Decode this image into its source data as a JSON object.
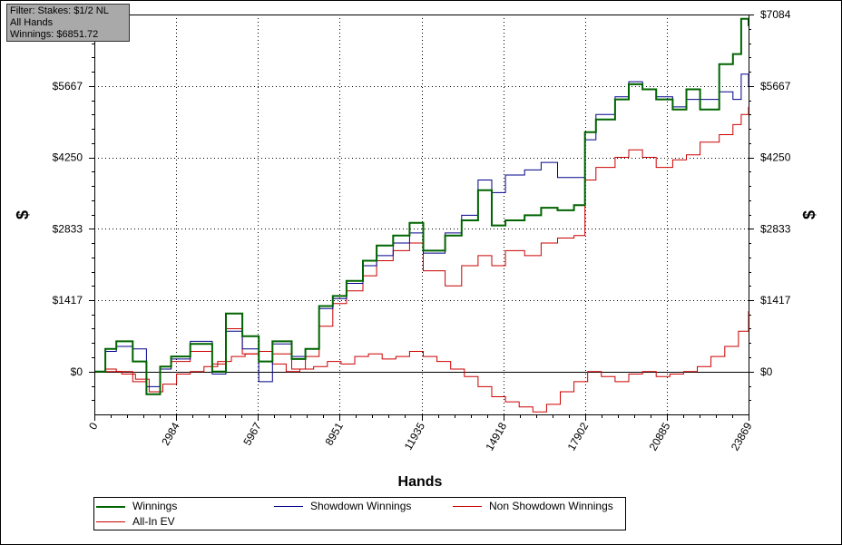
{
  "filter_box": {
    "line1": "Filter: Stakes: $1/2 NL",
    "line2": "All Hands",
    "line3": "Winnings: $6851.72"
  },
  "chart_data": {
    "type": "line",
    "title": "",
    "xlabel": "Hands",
    "ylabel_left": "$",
    "ylabel_right": "$",
    "xlim": [
      0,
      23869
    ],
    "ylim": [
      -850,
      7084
    ],
    "x_ticks": [
      0,
      2984,
      5967,
      8951,
      11935,
      14918,
      17902,
      20885,
      23869
    ],
    "y_ticks": [
      {
        "value": 0,
        "label": "$0"
      },
      {
        "value": 1417,
        "label": "$1417"
      },
      {
        "value": 2833,
        "label": "$2833"
      },
      {
        "value": 4250,
        "label": "$4250"
      },
      {
        "value": 5667,
        "label": "$5667"
      },
      {
        "value": 7084,
        "label": "$7084"
      }
    ],
    "grid": true,
    "legend_position": "bottom",
    "series": [
      {
        "name": "Winnings",
        "color": "#006400",
        "x": [
          0,
          400,
          800,
          1400,
          1900,
          2400,
          2800,
          3500,
          4300,
          4800,
          5400,
          6000,
          6500,
          7200,
          7700,
          8200,
          8700,
          9200,
          9800,
          10300,
          10900,
          11500,
          12000,
          12800,
          13400,
          14000,
          14500,
          15000,
          15700,
          16300,
          16900,
          17500,
          17900,
          18300,
          19000,
          19500,
          20000,
          20500,
          21100,
          21600,
          22100,
          22800,
          23300,
          23600,
          23869
        ],
        "y": [
          0,
          450,
          600,
          200,
          -450,
          100,
          300,
          550,
          0,
          1150,
          700,
          200,
          600,
          250,
          450,
          1300,
          1500,
          1800,
          2200,
          2500,
          2700,
          2950,
          2400,
          2700,
          3000,
          3600,
          2900,
          3000,
          3100,
          3250,
          3200,
          3300,
          4750,
          5000,
          5400,
          5700,
          5600,
          5400,
          5200,
          5600,
          5200,
          6100,
          6300,
          7000,
          6852
        ]
      },
      {
        "name": "Showdown Winnings",
        "color": "#00008b",
        "x": [
          0,
          400,
          800,
          1400,
          1900,
          2400,
          2800,
          3500,
          4300,
          4800,
          5400,
          6000,
          6500,
          7200,
          7700,
          8200,
          8700,
          9200,
          9800,
          10300,
          10900,
          11500,
          12000,
          12800,
          13400,
          14000,
          14500,
          15000,
          15700,
          16300,
          16900,
          17500,
          17900,
          18300,
          19000,
          19500,
          20000,
          20500,
          21100,
          21600,
          22100,
          22800,
          23300,
          23600,
          23869
        ],
        "y": [
          0,
          400,
          500,
          450,
          -300,
          50,
          250,
          600,
          -50,
          800,
          450,
          -200,
          550,
          300,
          450,
          1250,
          1450,
          1750,
          2100,
          2300,
          2550,
          2750,
          2350,
          2750,
          3100,
          3800,
          3550,
          3900,
          4000,
          4150,
          3850,
          3850,
          4600,
          5100,
          5450,
          5750,
          5600,
          5450,
          5250,
          5400,
          5400,
          5550,
          5400,
          5900,
          5650
        ]
      },
      {
        "name": "Non Showdown Winnings",
        "color": "#cc0000",
        "x": [
          0,
          500,
          1000,
          1500,
          2000,
          2500,
          3000,
          3500,
          4000,
          4500,
          5000,
          5500,
          6000,
          6500,
          7000,
          7500,
          8000,
          8500,
          9000,
          9500,
          10000,
          10500,
          11000,
          11500,
          12000,
          12500,
          13000,
          13500,
          14000,
          14500,
          15000,
          15500,
          16000,
          16500,
          17000,
          17500,
          18000,
          18500,
          19000,
          19500,
          20000,
          20500,
          21000,
          21500,
          22000,
          22500,
          23000,
          23500,
          23869
        ],
        "y": [
          0,
          0,
          -50,
          -150,
          -400,
          -250,
          -50,
          0,
          100,
          200,
          300,
          350,
          200,
          150,
          0,
          50,
          100,
          200,
          150,
          300,
          350,
          250,
          300,
          400,
          300,
          200,
          50,
          -100,
          -300,
          -500,
          -600,
          -700,
          -800,
          -650,
          -400,
          -200,
          0,
          -100,
          -200,
          -50,
          0,
          -100,
          -50,
          0,
          100,
          300,
          500,
          800,
          1200
        ]
      },
      {
        "name": "All-In EV",
        "color": "#cc0000",
        "x": [
          0,
          400,
          800,
          1400,
          1900,
          2400,
          2800,
          3500,
          4300,
          4800,
          5400,
          6000,
          6500,
          7200,
          7700,
          8200,
          8700,
          9200,
          9800,
          10300,
          10900,
          11500,
          12000,
          12800,
          13400,
          14000,
          14500,
          15000,
          15700,
          16300,
          16900,
          17500,
          17900,
          18300,
          19000,
          19500,
          20000,
          20500,
          21100,
          21600,
          22100,
          22800,
          23300,
          23600,
          23869
        ],
        "y": [
          0,
          50,
          0,
          -200,
          -450,
          50,
          200,
          400,
          150,
          850,
          350,
          400,
          350,
          50,
          300,
          900,
          1350,
          1600,
          1900,
          2200,
          2400,
          2550,
          2000,
          1700,
          2100,
          2300,
          2100,
          2400,
          2300,
          2550,
          2650,
          2700,
          3800,
          4050,
          4250,
          4400,
          4250,
          4050,
          4200,
          4300,
          4550,
          4700,
          4900,
          5100,
          5250
        ]
      }
    ]
  },
  "legend": {
    "items": [
      {
        "label": "Winnings",
        "color": "#006400"
      },
      {
        "label": "Showdown Winnings",
        "color": "#00008b"
      },
      {
        "label": "Non Showdown Winnings",
        "color": "#cc0000"
      },
      {
        "label": "All-In EV",
        "color": "#cc0000"
      }
    ]
  }
}
